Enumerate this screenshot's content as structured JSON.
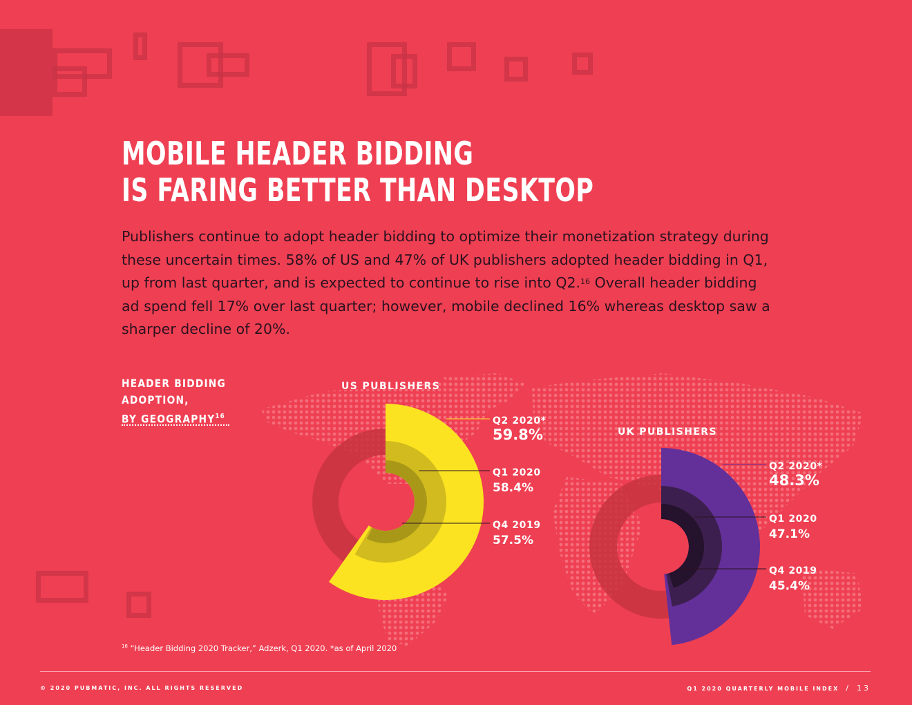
{
  "page": {
    "title_line1": "MOBILE HEADER BIDDING",
    "title_line2": "IS FARING BETTER THAN DESKTOP",
    "body": "Publishers continue to adopt header bidding to optimize their monetization strategy during these uncertain times. 58% of US and 47% of UK publishers adopted header bidding in Q1, up from last quarter, and is expected to continue to rise into Q2.",
    "body_sup": "16",
    "body_cont": " Overall header bidding ad spend fell 17% over last quarter; however, mobile declined 16% whereas desktop saw a sharper decline of 20%.",
    "side_label_line1": "HEADER BIDDING",
    "side_label_line2": "ADOPTION,",
    "side_label_line3": "BY GEOGRAPHY",
    "side_label_sup": "16",
    "footnote_sup": "16",
    "footnote": " “Header Bidding 2020 Tracker,” Adzerk, Q1 2020. *as of April 2020",
    "footer_left": "© 2020 PUBMATIC, INC. ALL RIGHTS RESERVED",
    "footer_right": "Q1 2020 QUARTERLY MOBILE INDEX",
    "footer_slash": "/",
    "page_number": "13"
  },
  "colors": {
    "background": "#ef3f52",
    "us_series": [
      "#fce321",
      "#d2bb1e",
      "#a99818"
    ],
    "uk_series": [
      "#63309a",
      "#3d1f4f",
      "#25122c"
    ],
    "ghost_ring": "#c8343f"
  },
  "chart_data": [
    {
      "type": "pie",
      "title": "US PUBLISHERS",
      "unit": "%",
      "categories": [
        "Q2 2020*",
        "Q1 2020",
        "Q4 2019"
      ],
      "values": [
        59.8,
        58.4,
        57.5
      ],
      "value_labels": [
        "59.8%",
        "58.4%",
        "57.5%"
      ]
    },
    {
      "type": "pie",
      "title": "UK PUBLISHERS",
      "unit": "%",
      "categories": [
        "Q2 2020*",
        "Q1 2020",
        "Q4 2019"
      ],
      "values": [
        48.3,
        47.1,
        45.4
      ],
      "value_labels": [
        "48.3%",
        "47.1%",
        "45.4%"
      ]
    }
  ]
}
